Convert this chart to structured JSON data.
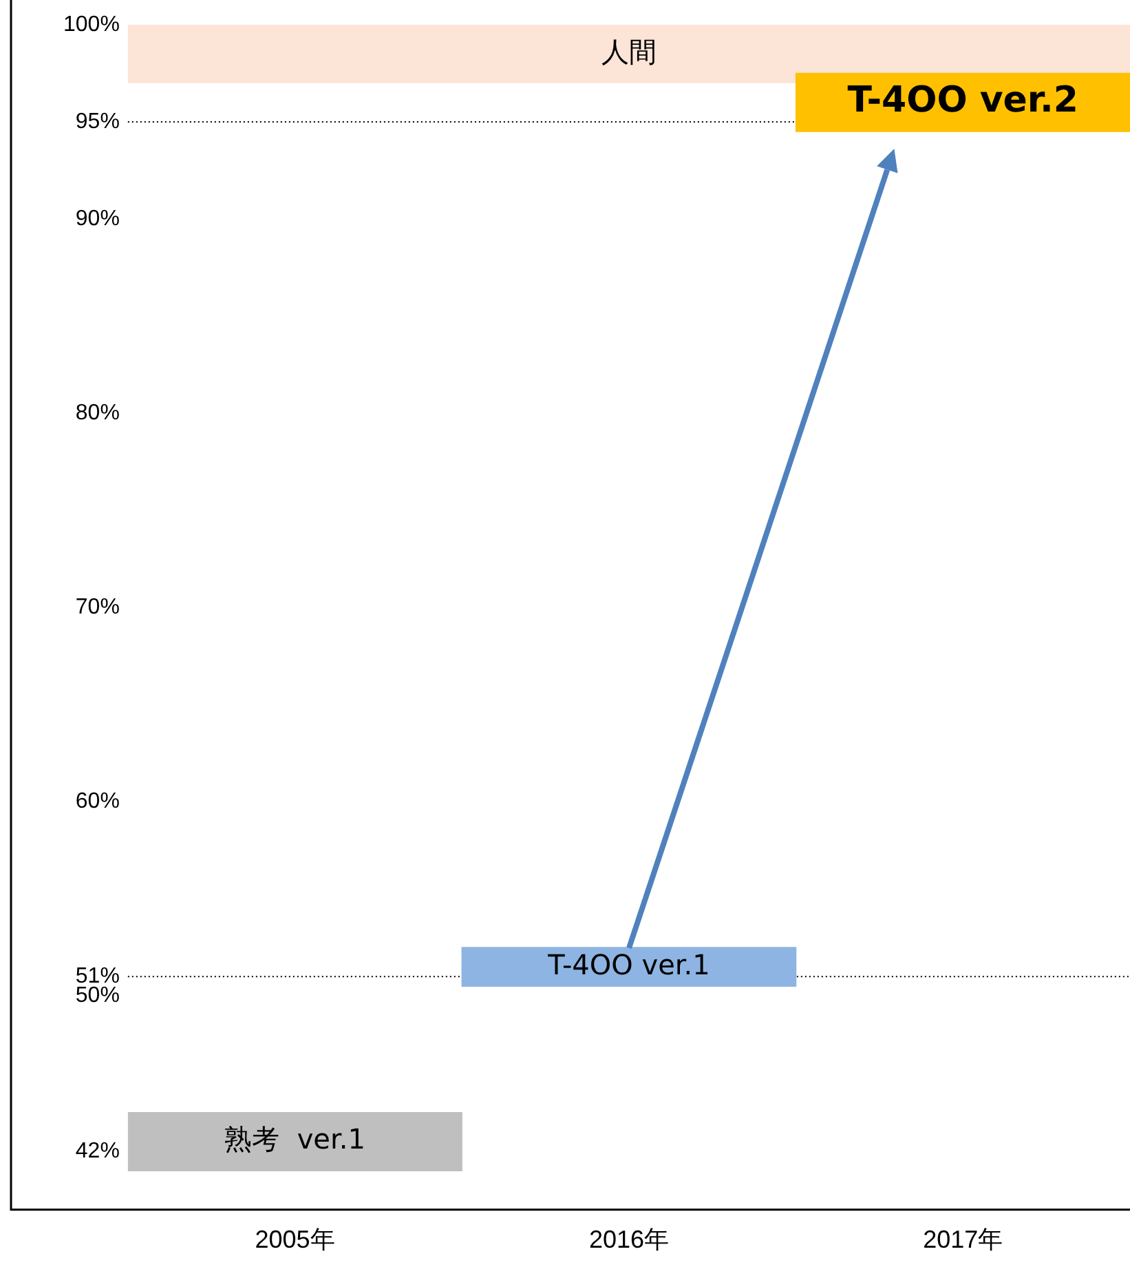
{
  "chart_data": {
    "type": "bar",
    "categories": [
      "2005年",
      "2016年",
      "2017年"
    ],
    "values": [
      3,
      2,
      3
    ],
    "base": [
      41,
      50.5,
      94.5
    ],
    "colors": [
      "#bfbfbf",
      "#8db4e2",
      "#ffc000"
    ],
    "ylim": [
      39,
      100
    ],
    "yticks": [
      {
        "value": 42,
        "label": "42%"
      },
      {
        "value": 50,
        "label": "50%"
      },
      {
        "value": 51,
        "label": "51%"
      },
      {
        "value": 60,
        "label": "60%"
      },
      {
        "value": 70,
        "label": "70%"
      },
      {
        "value": 80,
        "label": "80%"
      },
      {
        "value": 90,
        "label": "90%"
      },
      {
        "value": 95,
        "label": "95%"
      },
      {
        "value": 100,
        "label": "100%"
      }
    ],
    "ref_lines": [
      {
        "axis": "y",
        "value": 51,
        "label": null,
        "line_style": "dotted",
        "color": "#000000"
      },
      {
        "axis": "y",
        "value": 95,
        "label": null,
        "line_style": "dotted",
        "color": "#000000"
      }
    ],
    "bands": [
      {
        "axis": "y",
        "from": 97,
        "to": 100,
        "label": "人間",
        "color": "#fce4d6"
      }
    ],
    "value_labels": [
      "熟考  ver.1",
      "T-4OO ver.1",
      "T-4OO ver.2"
    ],
    "grid": false,
    "legend": false
  }
}
